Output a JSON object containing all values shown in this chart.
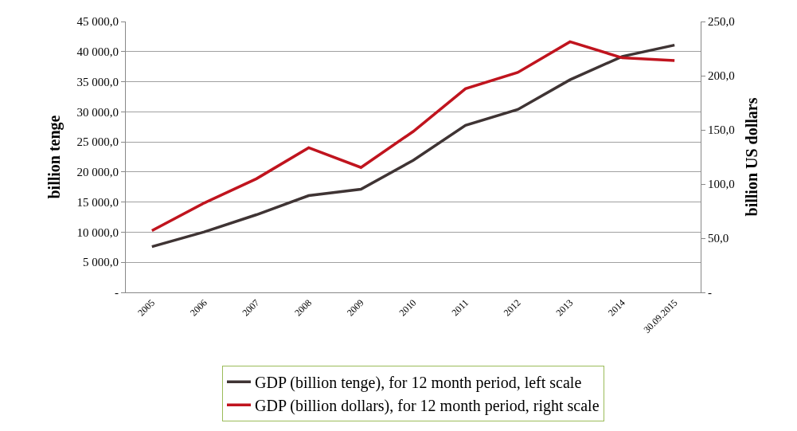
{
  "chart_data": {
    "type": "line",
    "ylabel": "billion tenge",
    "y2label": "billion US dollars",
    "categories": [
      "2005",
      "2006",
      "2007",
      "2008",
      "2009",
      "2010",
      "2011",
      "2012",
      "2013",
      "2014",
      "30.09.2015"
    ],
    "series": [
      {
        "name": "GDP (billion tenge), for 12 month period, left scale",
        "color": "#3f3434",
        "values": [
          7600,
          10050,
          12900,
          16080,
          17130,
          21940,
          27750,
          30380,
          35320,
          39200,
          41080
        ]
      },
      {
        "name": "GDP (billion dollars), for 12 month period, right scale",
        "color": "#c0141e",
        "axis": "y2",
        "values": [
          57,
          82.5,
          104.9,
          133.5,
          115.3,
          148.5,
          188,
          203,
          231.3,
          216.5,
          214
        ]
      }
    ],
    "ylim": [
      0,
      45000
    ],
    "yticks": [
      {
        "value": 0,
        "label": "-"
      },
      {
        "value": 5000,
        "label": "5 000,0"
      },
      {
        "value": 10000,
        "label": "10 000,0"
      },
      {
        "value": 15000,
        "label": "15 000,0"
      },
      {
        "value": 20000,
        "label": "20 000,0"
      },
      {
        "value": 25000,
        "label": "25 000,0"
      },
      {
        "value": 30000,
        "label": "30 000,0"
      },
      {
        "value": 35000,
        "label": "35 000,0"
      },
      {
        "value": 40000,
        "label": "40 000,0"
      },
      {
        "value": 45000,
        "label": "45 000,0"
      }
    ],
    "y2lim": [
      0,
      250
    ],
    "y2ticks": [
      {
        "value": 0,
        "label": "-"
      },
      {
        "value": 50,
        "label": "50,0"
      },
      {
        "value": 100,
        "label": "100,0"
      },
      {
        "value": 150,
        "label": "150,0"
      },
      {
        "value": 200,
        "label": "200,0"
      },
      {
        "value": 250,
        "label": "250,0"
      }
    ],
    "grid": "y",
    "legend": "bottom",
    "marker": "none",
    "line_style": "solid"
  }
}
